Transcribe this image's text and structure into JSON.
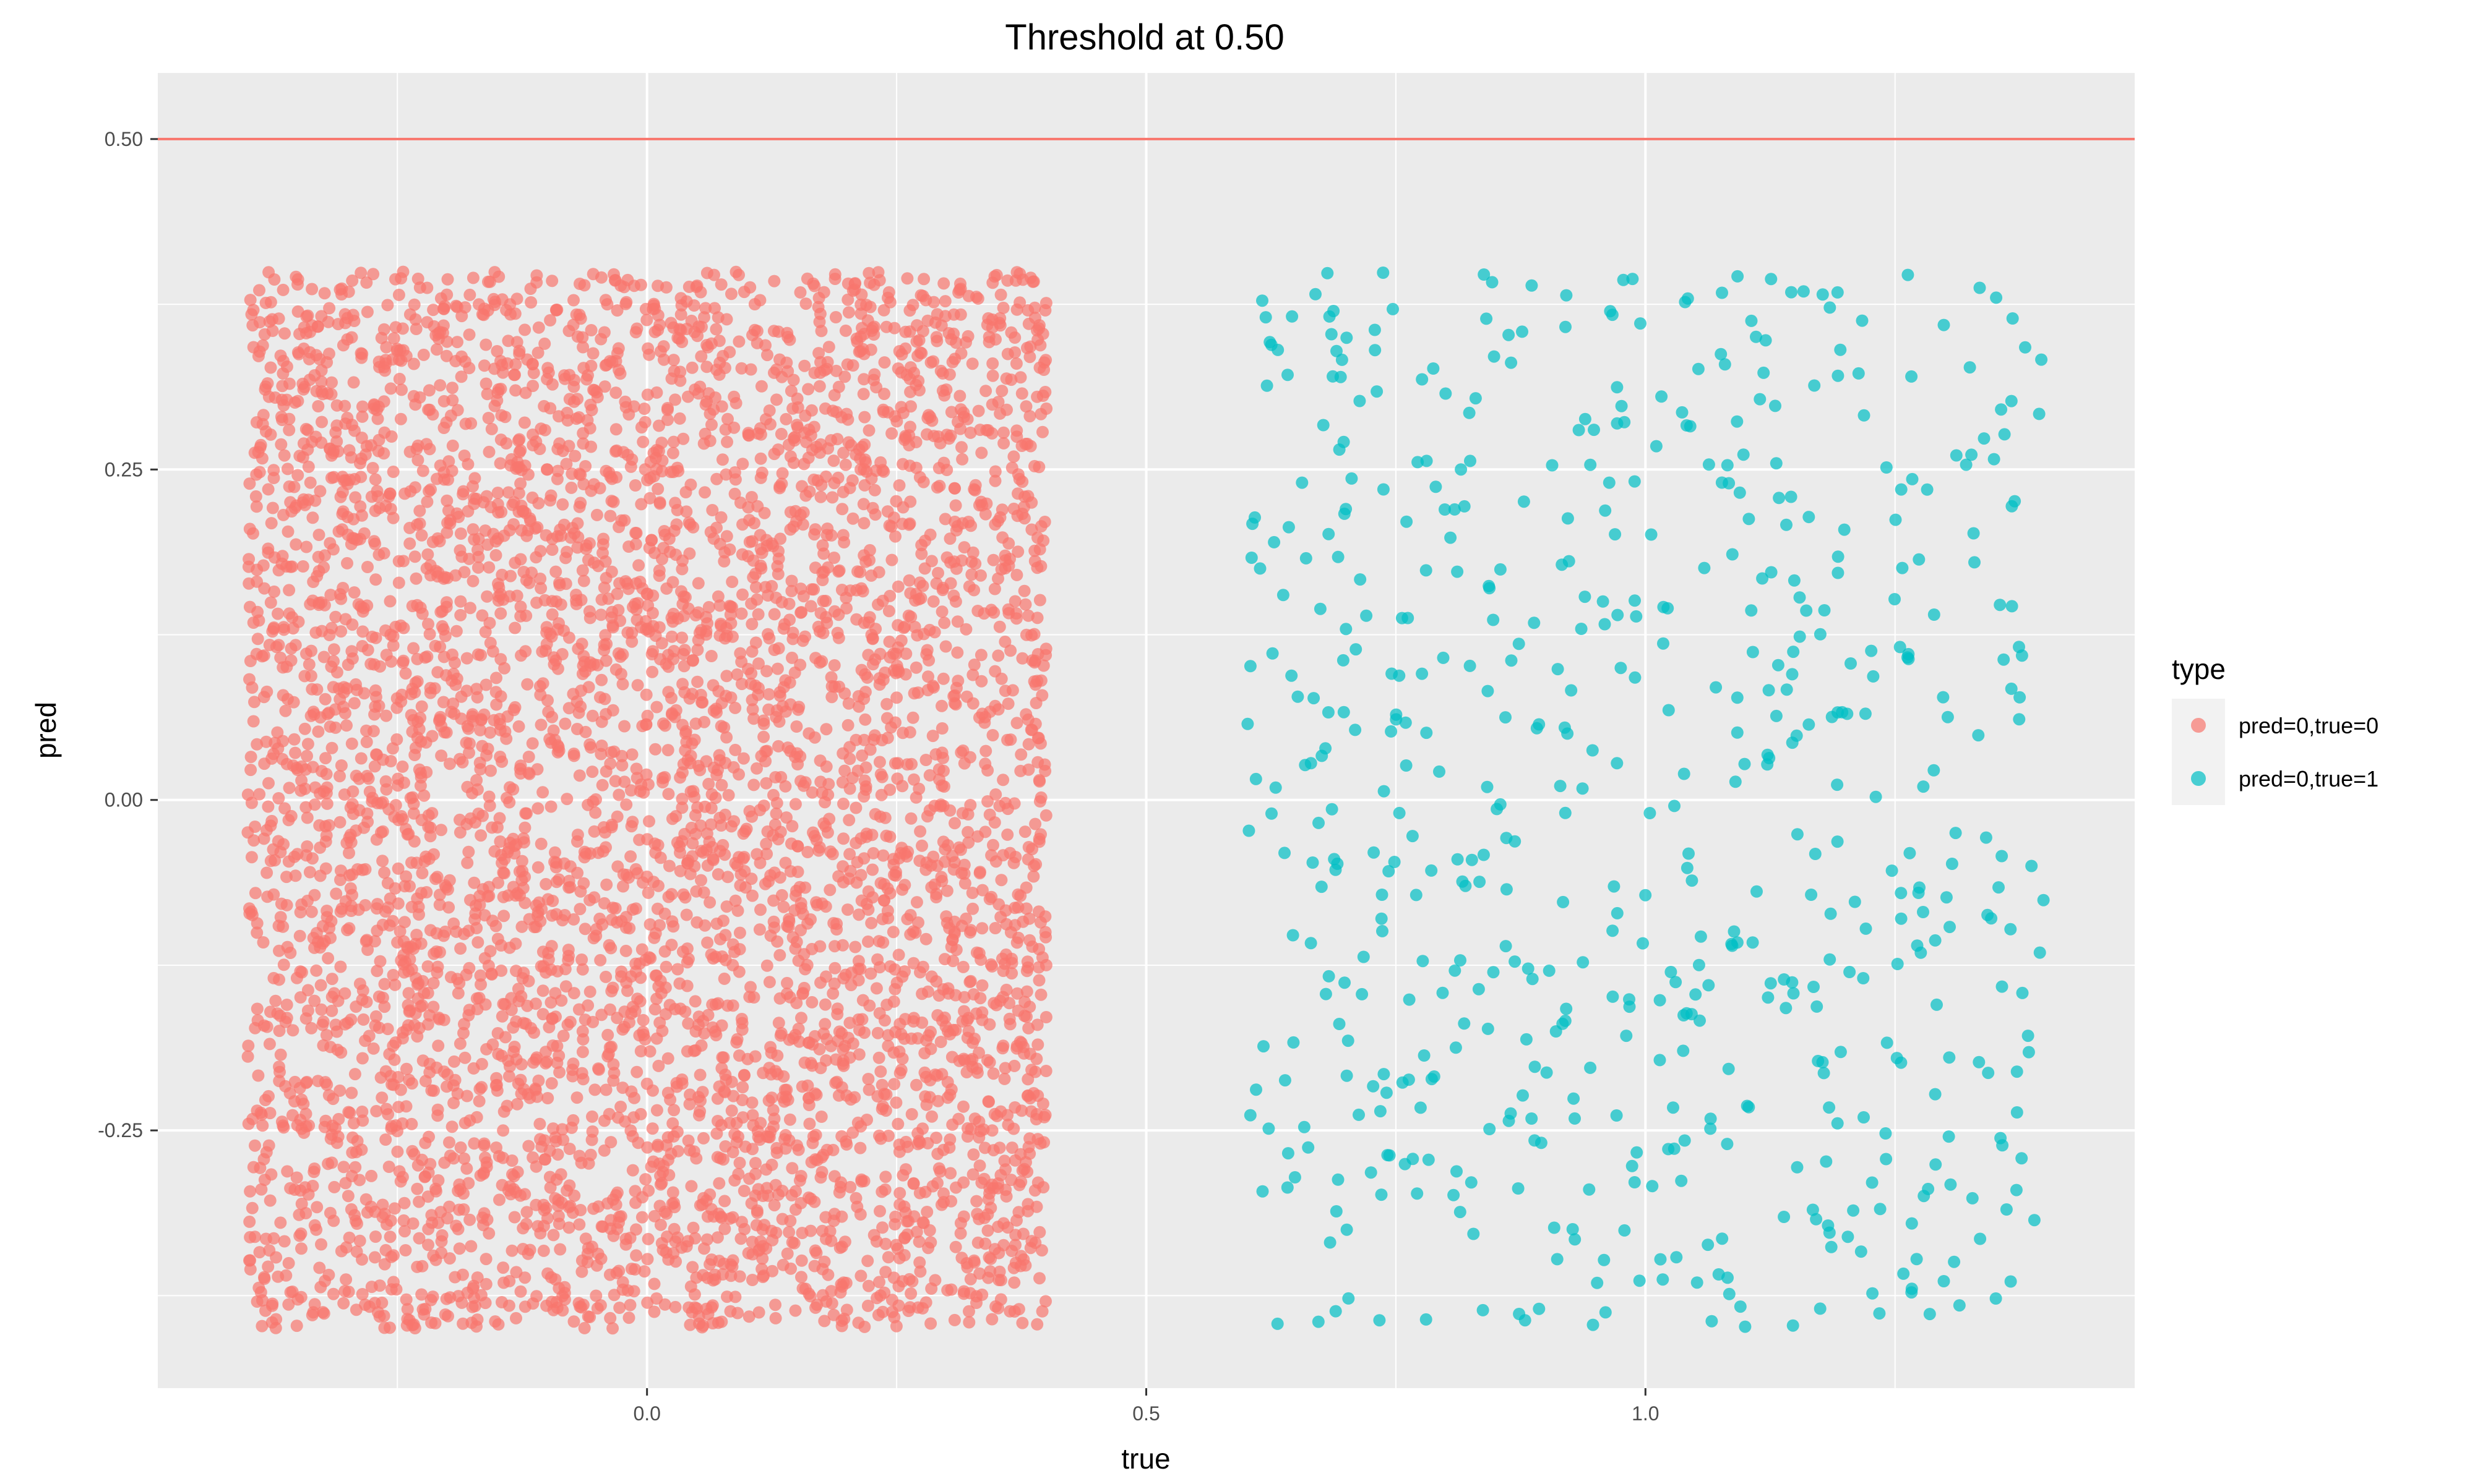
{
  "chart_data": {
    "type": "scatter",
    "title": "Threshold at 0.50",
    "xlabel": "true",
    "ylabel": "pred",
    "xlim": [
      -0.49,
      1.49
    ],
    "ylim": [
      -0.445,
      0.55
    ],
    "x_ticks": [
      {
        "value": 0.0,
        "label": "0.0"
      },
      {
        "value": 0.5,
        "label": "0.5"
      },
      {
        "value": 1.0,
        "label": "1.0"
      }
    ],
    "y_ticks": [
      {
        "value": 0.5,
        "label": "0.50"
      },
      {
        "value": 0.25,
        "label": "0.25"
      },
      {
        "value": 0.0,
        "label": "0.00"
      },
      {
        "value": -0.25,
        "label": "-0.25"
      }
    ],
    "grid": true,
    "threshold": {
      "value": 0.5,
      "color": "#F8766D"
    },
    "legend": {
      "title": "type",
      "position": "right",
      "entries": [
        {
          "label": "pred=0,true=0",
          "color": "#F8766D"
        },
        {
          "label": "pred=0,true=1",
          "color": "#00BFC4"
        }
      ]
    },
    "series": [
      {
        "legend_label": "pred=0,true=0",
        "color": "#F8766D",
        "count": 5000,
        "x_base": 0,
        "jitter": 0.4,
        "pred_range": [
          -0.4,
          0.4
        ]
      },
      {
        "legend_label": "pred=0,true=1",
        "color": "#00BFC4",
        "count": 600,
        "x_base": 1,
        "jitter": 0.4,
        "pred_range": [
          -0.4,
          0.4
        ]
      }
    ]
  }
}
